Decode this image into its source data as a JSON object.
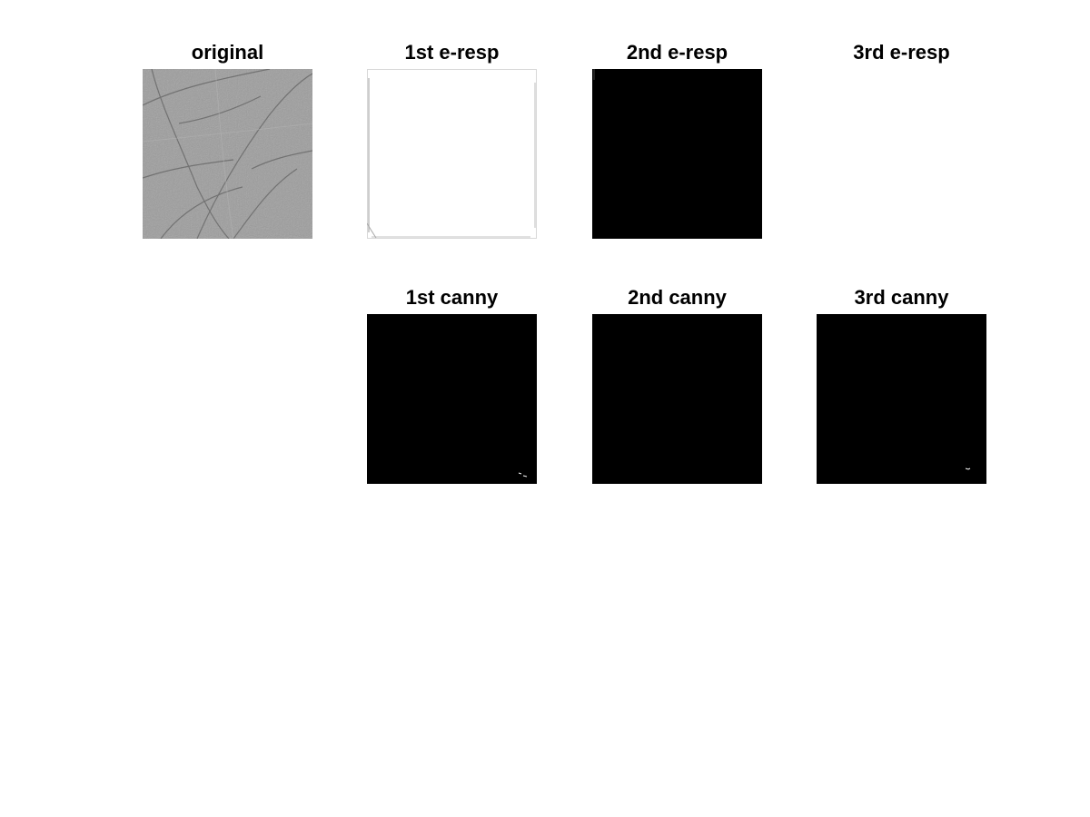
{
  "figure": {
    "background": "#ffffff",
    "panels": [
      {
        "id": "original",
        "title": "original",
        "image": "grayscale-palm-texture",
        "fill": "#9a9a9a"
      },
      {
        "id": "e1",
        "title": "1st e-resp",
        "image": "white-response",
        "fill": "#ffffff"
      },
      {
        "id": "e2",
        "title": "2nd e-resp",
        "image": "black-response",
        "fill": "#000000"
      },
      {
        "id": "e3",
        "title": "3rd e-resp",
        "image": "blank",
        "fill": "#ffffff"
      },
      {
        "id": "c1",
        "title": "1st canny",
        "image": "black-edges-sparse",
        "fill": "#000000"
      },
      {
        "id": "c2",
        "title": "2nd canny",
        "image": "black-edges-none",
        "fill": "#000000"
      },
      {
        "id": "c3",
        "title": "3rd canny",
        "image": "black-edges-sparse",
        "fill": "#000000"
      }
    ]
  }
}
